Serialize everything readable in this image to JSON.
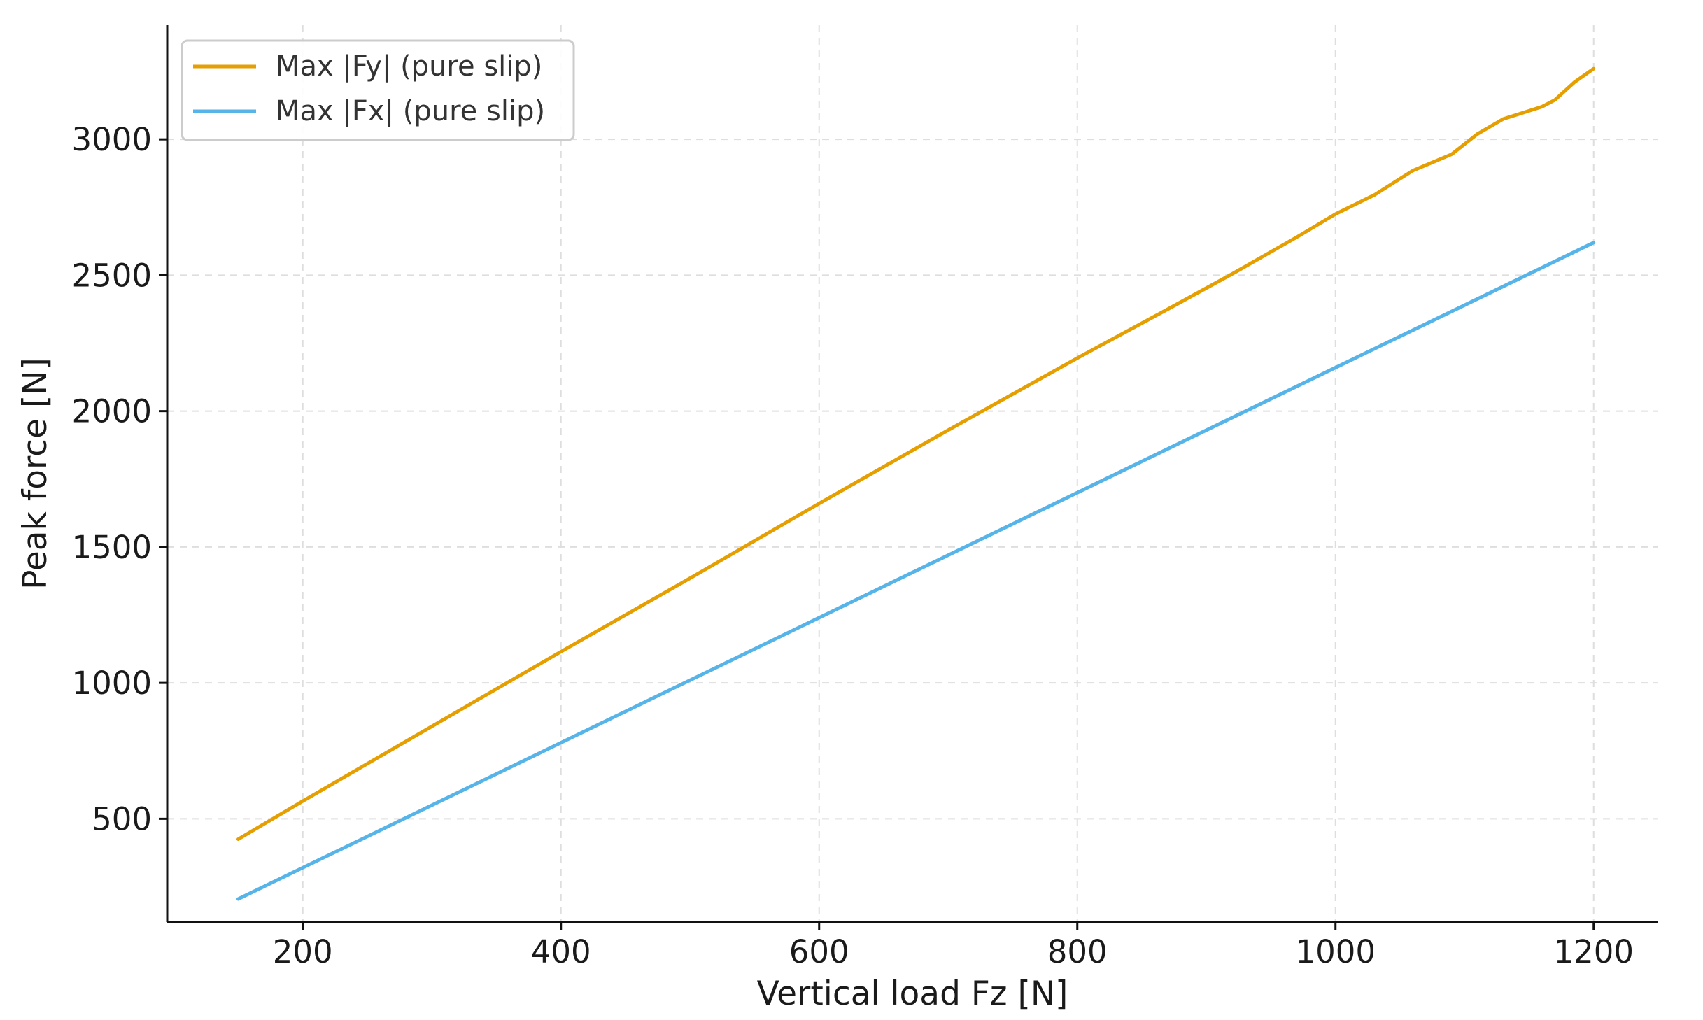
{
  "chart_data": {
    "type": "line",
    "title": "",
    "xlabel": "Vertical load Fz [N]",
    "ylabel": "Peak force [N]",
    "xlim": [
      95,
      1250
    ],
    "ylim": [
      120,
      3420
    ],
    "xticks": [
      200,
      400,
      600,
      800,
      1000,
      1200
    ],
    "yticks": [
      500,
      1000,
      1500,
      2000,
      2500,
      3000
    ],
    "xtick_labels": [
      "200",
      "400",
      "600",
      "800",
      "1000",
      "1200"
    ],
    "ytick_labels": [
      "500",
      "1000",
      "1500",
      "2000",
      "2500",
      "3000"
    ],
    "grid": true,
    "legend": {
      "position": "top-left"
    },
    "series": [
      {
        "name": "Max |Fy| (pure slip)",
        "color": "#E69F00",
        "x": [
          150,
          200,
          300,
          400,
          500,
          600,
          700,
          800,
          870,
          920,
          970,
          1000,
          1030,
          1060,
          1090,
          1110,
          1130,
          1160,
          1170,
          1185,
          1200
        ],
        "y": [
          425,
          565,
          840,
          1115,
          1385,
          1660,
          1930,
          2195,
          2375,
          2505,
          2640,
          2725,
          2795,
          2885,
          2945,
          3020,
          3075,
          3120,
          3145,
          3210,
          3260
        ]
      },
      {
        "name": "Max |Fx| (pure slip)",
        "color": "#56B4E9",
        "x": [
          150,
          1200
        ],
        "y": [
          205,
          2620
        ]
      }
    ]
  }
}
